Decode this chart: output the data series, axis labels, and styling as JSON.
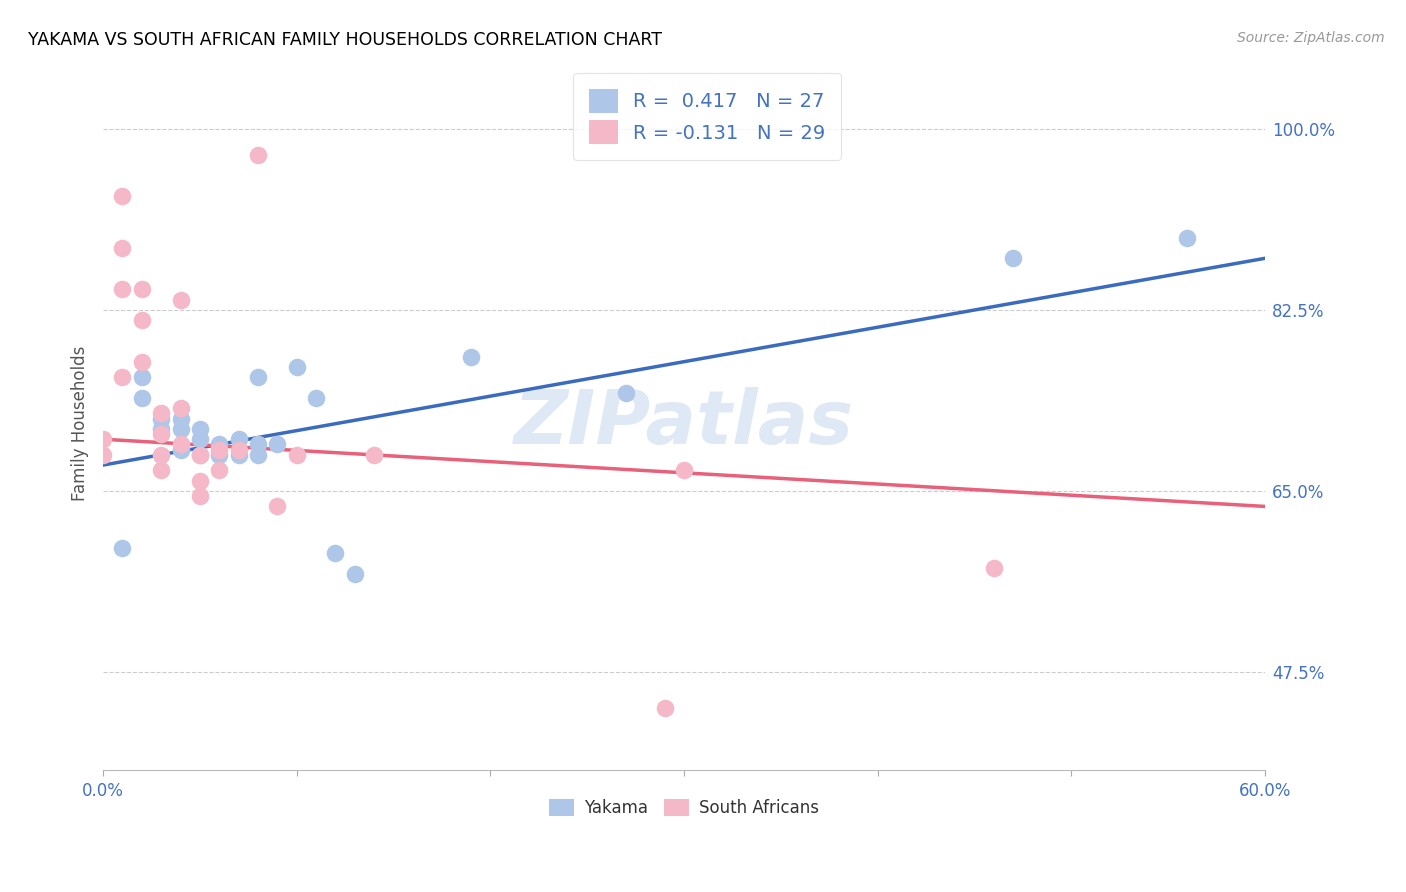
{
  "title": "YAKAMA VS SOUTH AFRICAN FAMILY HOUSEHOLDS CORRELATION CHART",
  "source": "Source: ZipAtlas.com",
  "ylabel": "Family Households",
  "ytick_labels": [
    "47.5%",
    "65.0%",
    "82.5%",
    "100.0%"
  ],
  "ytick_values": [
    0.475,
    0.65,
    0.825,
    1.0
  ],
  "xlim": [
    0.0,
    0.6
  ],
  "ylim": [
    0.38,
    1.05
  ],
  "yakama_R": 0.417,
  "yakama_N": 27,
  "sa_R": -0.131,
  "sa_N": 29,
  "yakama_color": "#aec6e8",
  "sa_color": "#f4b8c8",
  "yakama_line_color": "#3a6bbf",
  "sa_line_color": "#e8607a",
  "legend_text_color": "#4472c4",
  "watermark": "ZIPatlas",
  "yakama_x": [
    0.01,
    0.02,
    0.02,
    0.03,
    0.03,
    0.04,
    0.04,
    0.04,
    0.05,
    0.05,
    0.05,
    0.06,
    0.06,
    0.07,
    0.07,
    0.08,
    0.08,
    0.08,
    0.09,
    0.1,
    0.11,
    0.12,
    0.13,
    0.19,
    0.27,
    0.47,
    0.56
  ],
  "yakama_y": [
    0.595,
    0.76,
    0.74,
    0.72,
    0.71,
    0.72,
    0.71,
    0.69,
    0.71,
    0.7,
    0.685,
    0.695,
    0.685,
    0.7,
    0.685,
    0.76,
    0.695,
    0.685,
    0.695,
    0.77,
    0.74,
    0.59,
    0.57,
    0.78,
    0.745,
    0.875,
    0.895
  ],
  "sa_x": [
    0.0,
    0.0,
    0.01,
    0.01,
    0.01,
    0.01,
    0.02,
    0.02,
    0.02,
    0.03,
    0.03,
    0.03,
    0.03,
    0.04,
    0.04,
    0.04,
    0.05,
    0.05,
    0.05,
    0.06,
    0.06,
    0.07,
    0.08,
    0.09,
    0.1,
    0.14,
    0.3,
    0.46,
    0.29
  ],
  "sa_y": [
    0.7,
    0.685,
    0.935,
    0.885,
    0.845,
    0.76,
    0.845,
    0.815,
    0.775,
    0.725,
    0.705,
    0.685,
    0.67,
    0.835,
    0.73,
    0.695,
    0.685,
    0.66,
    0.645,
    0.69,
    0.67,
    0.69,
    0.975,
    0.635,
    0.685,
    0.685,
    0.67,
    0.575,
    0.44
  ],
  "blue_line_x0": 0.0,
  "blue_line_y0": 0.675,
  "blue_line_x1": 0.6,
  "blue_line_y1": 0.875,
  "pink_line_x0": 0.0,
  "pink_line_y0": 0.7,
  "pink_line_x1": 0.6,
  "pink_line_y1": 0.635,
  "xtick_positions": [
    0.0,
    0.1,
    0.2,
    0.3,
    0.4,
    0.5,
    0.6
  ],
  "xtick_show_labels": [
    true,
    false,
    false,
    false,
    false,
    false,
    true
  ],
  "xtick_label_values": [
    "0.0%",
    "",
    "",
    "",
    "",
    "",
    "60.0%"
  ]
}
